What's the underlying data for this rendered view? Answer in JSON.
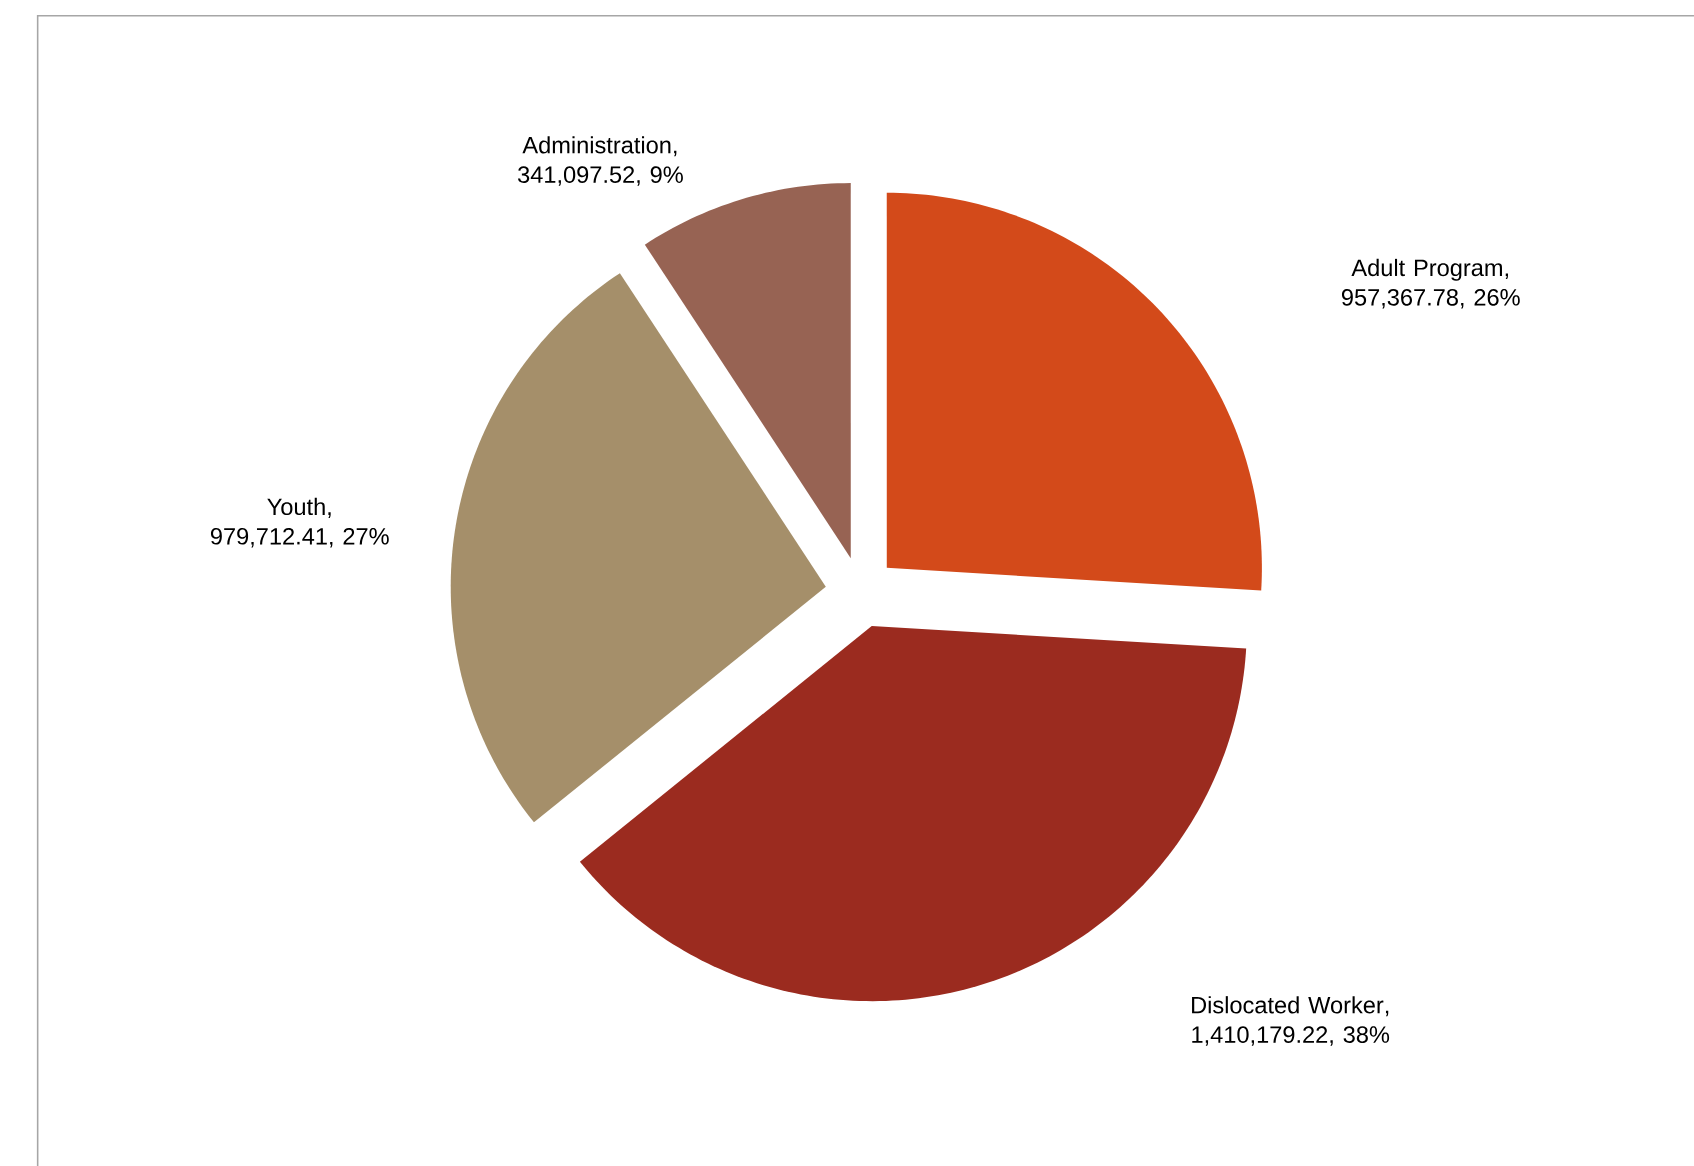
{
  "chart_data": {
    "type": "pie",
    "categories": [
      "Adult Program",
      "Dislocated Worker",
      "Youth",
      "Administration"
    ],
    "values": [
      957367.78,
      1410179.22,
      979712.41,
      341097.52
    ],
    "value_labels": [
      ", 957,367.78, 26%",
      ", 1,410,179.22, 38%",
      ", 979,712.41, 27%",
      ", 341,097.52, 9%"
    ],
    "colors": [
      "#d34a1a",
      "#9b2b1f",
      "#a58f6a",
      "#976353"
    ]
  }
}
